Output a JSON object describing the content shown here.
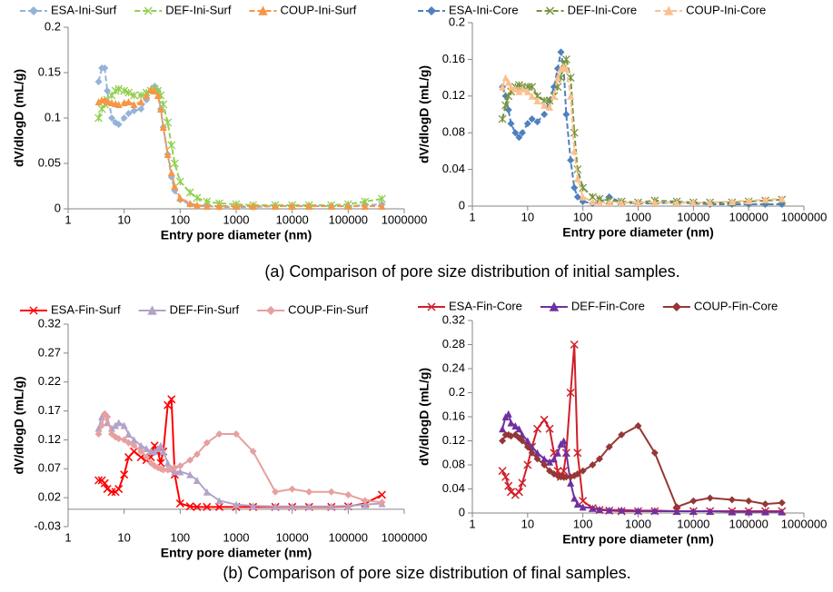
{
  "chart_data": [
    {
      "type": "line",
      "xlabel": "Entry pore diameter (nm)",
      "ylabel": "dV/dlogD (mL/g)",
      "xscale": "log",
      "legend": "top",
      "xlim": [
        1,
        1000000
      ],
      "xticks": [
        1,
        10,
        100,
        1000,
        10000,
        100000,
        1000000
      ],
      "ylim": [
        0,
        0.2
      ],
      "yticks": [
        0,
        0.05,
        0.1,
        0.15,
        0.2
      ],
      "x": [
        3.5,
        4,
        4.5,
        5,
        6,
        7,
        8,
        10,
        12,
        15,
        20,
        25,
        30,
        35,
        40,
        45,
        50,
        60,
        70,
        80,
        100,
        150,
        200,
        300,
        500,
        1000,
        2000,
        5000,
        10000,
        20000,
        50000,
        100000,
        200000,
        400000
      ],
      "series": [
        {
          "name": "ESA-Ini-Surf",
          "color": "#95b3d7",
          "marker": "diamond",
          "dash": true,
          "values": [
            0.14,
            0.155,
            0.155,
            0.13,
            0.1,
            0.095,
            0.093,
            0.1,
            0.105,
            0.108,
            0.11,
            0.12,
            0.13,
            0.135,
            0.13,
            0.11,
            0.09,
            0.06,
            0.035,
            0.02,
            0.01,
            0.005,
            0.003,
            0.003,
            0.002,
            0.002,
            0.002,
            0.003,
            0.003,
            0.003,
            0.003,
            0.003,
            0.004,
            0.005
          ]
        },
        {
          "name": "DEF-Ini-Surf",
          "color": "#92d050",
          "marker": "star",
          "dash": true,
          "values": [
            0.1,
            0.11,
            0.115,
            0.12,
            0.125,
            0.13,
            0.132,
            0.13,
            0.128,
            0.125,
            0.125,
            0.128,
            0.13,
            0.132,
            0.13,
            0.125,
            0.115,
            0.095,
            0.07,
            0.05,
            0.03,
            0.018,
            0.012,
            0.008,
            0.006,
            0.005,
            0.004,
            0.004,
            0.004,
            0.004,
            0.004,
            0.005,
            0.008,
            0.011
          ]
        },
        {
          "name": "COUP-Ini-Surf",
          "color": "#f79646",
          "marker": "triangle",
          "dash": true,
          "values": [
            0.118,
            0.12,
            0.12,
            0.118,
            0.117,
            0.116,
            0.115,
            0.117,
            0.118,
            0.115,
            0.118,
            0.125,
            0.132,
            0.13,
            0.125,
            0.11,
            0.09,
            0.06,
            0.04,
            0.025,
            0.012,
            0.006,
            0.004,
            0.003,
            0.003,
            0.003,
            0.003,
            0.003,
            0.003,
            0.003,
            0.003,
            0.003,
            0.003,
            0.003
          ]
        }
      ]
    },
    {
      "type": "line",
      "xlabel": "Entry pore diameter (nm)",
      "ylabel": "dV/dlogD (mL/g)",
      "xscale": "log",
      "legend": "top",
      "xlim": [
        1,
        1000000
      ],
      "xticks": [
        1,
        10,
        100,
        1000,
        10000,
        100000,
        1000000
      ],
      "ylim": [
        0,
        0.2
      ],
      "yticks": [
        0,
        0.04,
        0.08,
        0.12,
        0.16,
        0.2
      ],
      "x": [
        3.5,
        4,
        4.5,
        5,
        6,
        7,
        8,
        10,
        12,
        15,
        20,
        25,
        30,
        35,
        40,
        45,
        50,
        60,
        70,
        80,
        100,
        150,
        200,
        300,
        500,
        1000,
        2000,
        5000,
        10000,
        20000,
        50000,
        100000,
        200000,
        400000
      ],
      "series": [
        {
          "name": "ESA-Ini-Core",
          "color": "#4f81bd",
          "marker": "diamond",
          "dash": true,
          "values": [
            0.13,
            0.12,
            0.105,
            0.09,
            0.08,
            0.075,
            0.08,
            0.09,
            0.095,
            0.092,
            0.1,
            0.115,
            0.13,
            0.15,
            0.168,
            0.15,
            0.1,
            0.05,
            0.02,
            0.01,
            0.005,
            0.003,
            0.004,
            0.01,
            0.004,
            0.003,
            0.003,
            0.004,
            0.003,
            0.002,
            0.002,
            0.002,
            0.002,
            0.002
          ]
        },
        {
          "name": "DEF-Ini-Core",
          "color": "#77933c",
          "marker": "star",
          "dash": true,
          "values": [
            0.095,
            0.11,
            0.12,
            0.125,
            0.13,
            0.132,
            0.13,
            0.13,
            0.13,
            0.12,
            0.115,
            0.115,
            0.12,
            0.13,
            0.14,
            0.155,
            0.16,
            0.14,
            0.08,
            0.04,
            0.02,
            0.01,
            0.008,
            0.006,
            0.005,
            0.004,
            0.006,
            0.005,
            0.004,
            0.004,
            0.004,
            0.005,
            0.006,
            0.007
          ]
        },
        {
          "name": "COUP-Ini-Core",
          "color": "#fac08f",
          "marker": "triangle",
          "dash": true,
          "values": [
            0.13,
            0.14,
            0.135,
            0.13,
            0.128,
            0.125,
            0.128,
            0.125,
            0.12,
            0.115,
            0.11,
            0.108,
            0.12,
            0.14,
            0.15,
            0.152,
            0.15,
            0.12,
            0.06,
            0.03,
            0.01,
            0.005,
            0.004,
            0.004,
            0.004,
            0.004,
            0.004,
            0.004,
            0.004,
            0.004,
            0.005,
            0.006,
            0.007,
            0.008
          ]
        }
      ]
    },
    {
      "type": "line",
      "xlabel": "Entry pore diameter (nm)",
      "ylabel": "dV/dlogD (mL/g)",
      "xscale": "log",
      "legend": "top",
      "xlim": [
        1,
        1000000
      ],
      "xticks": [
        1,
        10,
        100,
        1000,
        10000,
        100000,
        1000000
      ],
      "ylim": [
        -0.03,
        0.32
      ],
      "yticks": [
        -0.03,
        0.02,
        0.07,
        0.12,
        0.17,
        0.22,
        0.27,
        0.32
      ],
      "x": [
        3.5,
        4,
        4.5,
        5,
        6,
        7,
        8,
        10,
        12,
        15,
        20,
        25,
        30,
        35,
        40,
        45,
        50,
        60,
        70,
        80,
        100,
        150,
        200,
        300,
        500,
        1000,
        2000,
        5000,
        10000,
        20000,
        50000,
        100000,
        200000,
        400000
      ],
      "series": [
        {
          "name": "ESA-Fin-Surf",
          "color": "#ff0000",
          "marker": "x",
          "dash": false,
          "values": [
            0.05,
            0.05,
            0.045,
            0.035,
            0.03,
            0.03,
            0.035,
            0.06,
            0.09,
            0.1,
            0.09,
            0.085,
            0.09,
            0.11,
            0.1,
            0.08,
            0.1,
            0.18,
            0.19,
            0.06,
            0.01,
            0.005,
            0.004,
            0.004,
            0.004,
            0.004,
            0.004,
            0.004,
            0.004,
            0.004,
            0.004,
            0.005,
            0.01,
            0.025
          ]
        },
        {
          "name": "DEF-Fin-Surf",
          "color": "#b3a2c7",
          "marker": "triangle",
          "dash": false,
          "values": [
            0.14,
            0.16,
            0.165,
            0.15,
            0.14,
            0.145,
            0.15,
            0.145,
            0.13,
            0.12,
            0.11,
            0.105,
            0.1,
            0.1,
            0.105,
            0.11,
            0.1,
            0.08,
            0.07,
            0.065,
            0.065,
            0.06,
            0.05,
            0.03,
            0.015,
            0.008,
            0.006,
            0.005,
            0.005,
            0.005,
            0.005,
            0.006,
            0.008,
            0.01
          ]
        },
        {
          "name": "COUP-Fin-Surf",
          "color": "#e6a0a0",
          "marker": "diamond",
          "dash": false,
          "values": [
            0.13,
            0.145,
            0.165,
            0.16,
            0.13,
            0.125,
            0.122,
            0.12,
            0.115,
            0.11,
            0.1,
            0.09,
            0.08,
            0.075,
            0.072,
            0.07,
            0.068,
            0.068,
            0.07,
            0.072,
            0.075,
            0.085,
            0.095,
            0.115,
            0.13,
            0.13,
            0.1,
            0.03,
            0.035,
            0.03,
            0.03,
            0.025,
            0.015,
            0.012
          ]
        }
      ]
    },
    {
      "type": "line",
      "xlabel": "Entry pore diameter (nm)",
      "ylabel": "dV/dlogD (mL/g)",
      "xscale": "log",
      "legend": "top",
      "xlim": [
        1,
        1000000
      ],
      "xticks": [
        1,
        10,
        100,
        1000,
        10000,
        100000,
        1000000
      ],
      "ylim": [
        0,
        0.32
      ],
      "yticks": [
        0,
        0.04,
        0.08,
        0.12,
        0.16,
        0.2,
        0.24,
        0.28,
        0.32
      ],
      "x": [
        3.5,
        4,
        4.5,
        5,
        6,
        7,
        8,
        10,
        12,
        15,
        20,
        25,
        30,
        35,
        40,
        45,
        50,
        60,
        70,
        80,
        100,
        150,
        200,
        300,
        500,
        1000,
        2000,
        5000,
        10000,
        20000,
        50000,
        100000,
        200000,
        400000
      ],
      "series": [
        {
          "name": "ESA-Fin-Core",
          "color": "#d01f2a",
          "marker": "x",
          "dash": false,
          "values": [
            0.07,
            0.06,
            0.045,
            0.035,
            0.03,
            0.035,
            0.05,
            0.08,
            0.11,
            0.14,
            0.155,
            0.14,
            0.1,
            0.07,
            0.06,
            0.07,
            0.1,
            0.2,
            0.28,
            0.1,
            0.02,
            0.008,
            0.005,
            0.004,
            0.003,
            0.003,
            0.003,
            0.003,
            0.003,
            0.003,
            0.003,
            0.003,
            0.003,
            0.003
          ]
        },
        {
          "name": "DEF-Fin-Core",
          "color": "#7030a0",
          "marker": "triangle",
          "dash": false,
          "values": [
            0.14,
            0.16,
            0.165,
            0.15,
            0.145,
            0.14,
            0.13,
            0.12,
            0.11,
            0.1,
            0.09,
            0.085,
            0.09,
            0.1,
            0.115,
            0.12,
            0.1,
            0.05,
            0.025,
            0.015,
            0.01,
            0.008,
            0.006,
            0.005,
            0.005,
            0.004,
            0.004,
            0.003,
            0.003,
            0.003,
            0.002,
            0.002,
            0.002,
            0.002
          ]
        },
        {
          "name": "COUP-Fin-Core",
          "color": "#953735",
          "marker": "diamond",
          "dash": false,
          "values": [
            0.12,
            0.13,
            0.13,
            0.128,
            0.13,
            0.125,
            0.12,
            0.11,
            0.1,
            0.09,
            0.08,
            0.07,
            0.065,
            0.062,
            0.06,
            0.06,
            0.06,
            0.06,
            0.062,
            0.065,
            0.07,
            0.08,
            0.09,
            0.11,
            0.13,
            0.145,
            0.1,
            0.01,
            0.02,
            0.025,
            0.022,
            0.02,
            0.015,
            0.017
          ]
        }
      ]
    }
  ],
  "captions": [
    "(a) Comparison of pore size distribution of initial samples.",
    "(b) Comparison of pore size distribution of final samples."
  ]
}
